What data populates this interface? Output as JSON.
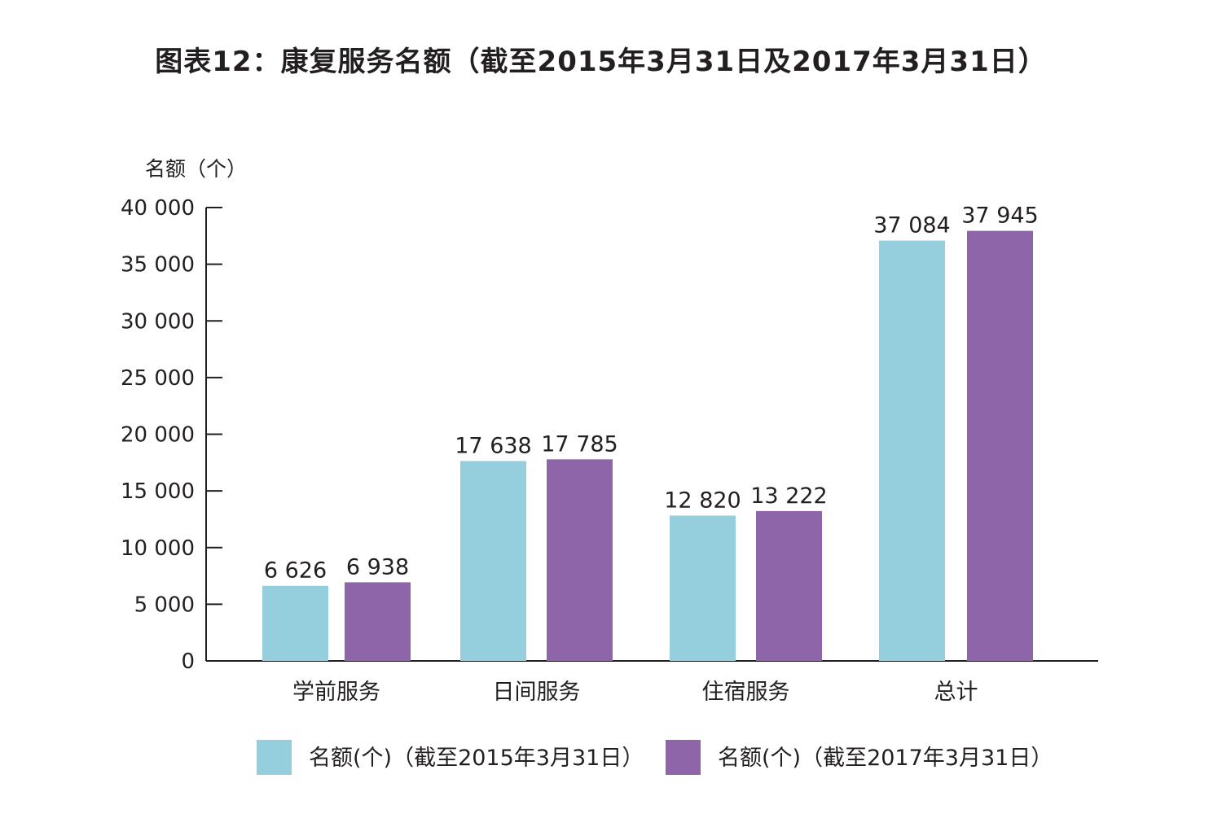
{
  "chart_data": {
    "type": "bar",
    "title": "图表12：康复服务名额（截至2015年3月31日及2017年3月31日）",
    "ylabel": "名额（个）",
    "xlabel": "",
    "ylim": [
      0,
      40000
    ],
    "yticks": [
      0,
      5000,
      10000,
      15000,
      20000,
      25000,
      30000,
      35000,
      40000
    ],
    "ytick_labels": [
      "0",
      "5 000",
      "10 000",
      "15 000",
      "20 000",
      "25 000",
      "30 000",
      "35 000",
      "40 000"
    ],
    "categories": [
      "学前服务",
      "日间服务",
      "住宿服务",
      "总计"
    ],
    "series": [
      {
        "name": "名额(个)（截至2015年3月31日）",
        "color": "#95cfdd",
        "values": [
          6626,
          17638,
          12820,
          37084
        ],
        "labels": [
          "6 626",
          "17 638",
          "12 820",
          "37 084"
        ]
      },
      {
        "name": "名额(个)（截至2017年3月31日）",
        "color": "#8e65a8",
        "values": [
          6938,
          17785,
          13222,
          37945
        ],
        "labels": [
          "6 938",
          "17 785",
          "13 222",
          "37 945"
        ]
      }
    ],
    "grid": false,
    "legend": "bottom"
  }
}
